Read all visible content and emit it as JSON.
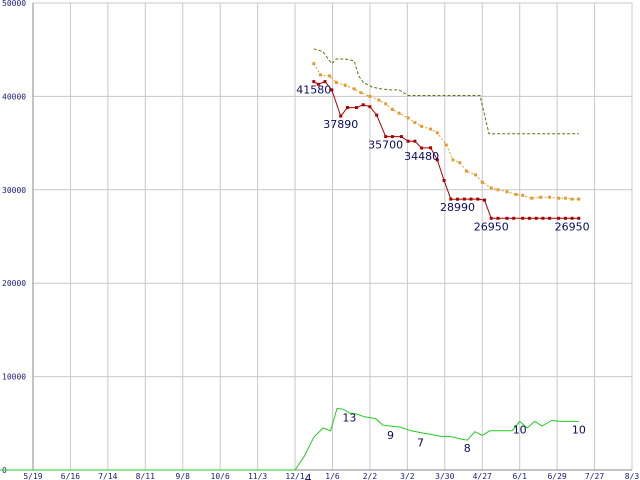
{
  "chart_data": {
    "type": "line",
    "title": "",
    "xlabel": "",
    "ylabel": "",
    "ylim": [
      0,
      50000
    ],
    "y_ticks": [
      0,
      10000,
      20000,
      30000,
      40000,
      50000
    ],
    "grid": true,
    "x_ticks": [
      "5/19",
      "6/16",
      "7/14",
      "8/11",
      "9/8",
      "10/6",
      "11/3",
      "12/1",
      "1/6",
      "2/2",
      "3/2",
      "3/30",
      "4/27",
      "6/1",
      "6/29",
      "7/27",
      "8/3"
    ],
    "series": [
      {
        "color": "#aa0000",
        "marker": "square",
        "dash": "",
        "x": [
          0.0,
          0.12,
          0.3,
          0.48,
          0.72,
          0.9,
          1.14,
          1.32,
          1.5,
          1.68,
          1.92,
          2.1,
          2.34,
          2.52,
          2.7,
          2.88,
          3.12,
          3.3,
          3.48,
          3.66,
          3.84,
          4.02,
          4.2,
          4.38,
          4.56,
          4.74,
          4.92,
          5.16,
          5.34,
          5.58,
          5.76,
          5.94,
          6.12,
          6.3,
          6.54,
          6.72,
          6.9,
          7.08
        ],
        "values": [
          41580,
          41300,
          41580,
          40700,
          37890,
          38800,
          38800,
          39100,
          38900,
          38000,
          35700,
          35700,
          35700,
          35200,
          35200,
          34480,
          34500,
          33200,
          31000,
          29000,
          28990,
          29000,
          29000,
          29000,
          28900,
          26950,
          26950,
          26950,
          26950,
          26950,
          26950,
          26950,
          26950,
          26950,
          26950,
          26950,
          26950,
          26950
        ]
      },
      {
        "color": "#e69a2e",
        "marker": "square",
        "dash": "2,2",
        "x": [
          0.0,
          0.18,
          0.42,
          0.6,
          0.84,
          1.08,
          1.26,
          1.5,
          1.74,
          1.92,
          2.1,
          2.28,
          2.52,
          2.7,
          2.88,
          3.12,
          3.3,
          3.54,
          3.72,
          3.9,
          4.08,
          4.32,
          4.5,
          4.74,
          4.92,
          5.16,
          5.4,
          5.58,
          5.82,
          6.06,
          6.3,
          6.54,
          6.72,
          6.9,
          7.08
        ],
        "values": [
          43500,
          42300,
          42200,
          41500,
          41200,
          40800,
          40400,
          40000,
          39600,
          39200,
          38600,
          38200,
          37700,
          37200,
          36800,
          36500,
          36100,
          34800,
          33200,
          32900,
          32000,
          31600,
          30800,
          30200,
          30000,
          29800,
          29500,
          29400,
          29100,
          29200,
          29200,
          29100,
          29100,
          29000,
          29000
        ]
      },
      {
        "color": "#557711",
        "marker": "none",
        "dash": "3,2",
        "x": [
          0.0,
          0.24,
          0.48,
          0.6,
          0.84,
          1.08,
          1.2,
          1.32,
          1.56,
          1.8,
          2.04,
          2.28,
          2.52,
          2.76,
          3.0,
          3.24,
          3.48,
          3.72,
          3.96,
          4.2,
          4.44,
          4.68,
          4.92,
          5.16,
          5.4,
          5.64,
          5.88,
          6.12,
          6.36,
          6.6,
          6.84,
          7.08
        ],
        "values": [
          45100,
          44800,
          43500,
          44000,
          44000,
          43800,
          42200,
          41500,
          41000,
          40800,
          40700,
          40700,
          40100,
          40100,
          40100,
          40100,
          40100,
          40100,
          40100,
          40100,
          40100,
          36000,
          36000,
          36000,
          36000,
          36000,
          36000,
          36000,
          36000,
          36000,
          36000,
          36000
        ]
      },
      {
        "color": "#22cc22",
        "marker": "none",
        "dash": "",
        "x": [
          -12.0,
          -8.0,
          -6.0,
          -0.5,
          -0.25,
          0.0,
          0.25,
          0.45,
          0.62,
          0.8,
          0.95,
          1.15,
          1.35,
          1.65,
          1.85,
          2.05,
          2.3,
          2.6,
          2.85,
          3.15,
          3.4,
          3.6,
          3.75,
          3.95,
          4.1,
          4.3,
          4.5,
          4.7,
          4.9,
          5.1,
          5.3,
          5.5,
          5.7,
          5.9,
          6.1,
          6.35,
          6.6,
          6.85,
          7.08
        ],
        "values": [
          0,
          0,
          0,
          0,
          1500,
          3500,
          4500,
          4200,
          6600,
          6500,
          6100,
          6000,
          5700,
          5500,
          4800,
          4700,
          4600,
          4200,
          4000,
          3800,
          3600,
          3600,
          3500,
          3300,
          3200,
          4100,
          3700,
          4200,
          4200,
          4200,
          4200,
          5200,
          4500,
          5200,
          4700,
          5300,
          5200,
          5200,
          5200
        ]
      }
    ],
    "data_labels": [
      {
        "text": "41580",
        "x": 0.0,
        "y": 41580
      },
      {
        "text": "37890",
        "x": 0.72,
        "y": 37890
      },
      {
        "text": "35700",
        "x": 1.92,
        "y": 35700
      },
      {
        "text": "34480",
        "x": 2.88,
        "y": 34480
      },
      {
        "text": "28990",
        "x": 3.84,
        "y": 28990
      },
      {
        "text": "26950",
        "x": 4.74,
        "y": 26950
      },
      {
        "text": "26950",
        "x": 6.9,
        "y": 26950
      },
      {
        "text": "4",
        "x": -0.15,
        "y": 0
      },
      {
        "text": "13",
        "x": 0.95,
        "y": 6500
      },
      {
        "text": "9",
        "x": 2.05,
        "y": 4600
      },
      {
        "text": "7",
        "x": 2.85,
        "y": 3800
      },
      {
        "text": "8",
        "x": 4.1,
        "y": 3200
      },
      {
        "text": "10",
        "x": 5.5,
        "y": 5200
      },
      {
        "text": "10",
        "x": 7.08,
        "y": 5200
      }
    ]
  }
}
